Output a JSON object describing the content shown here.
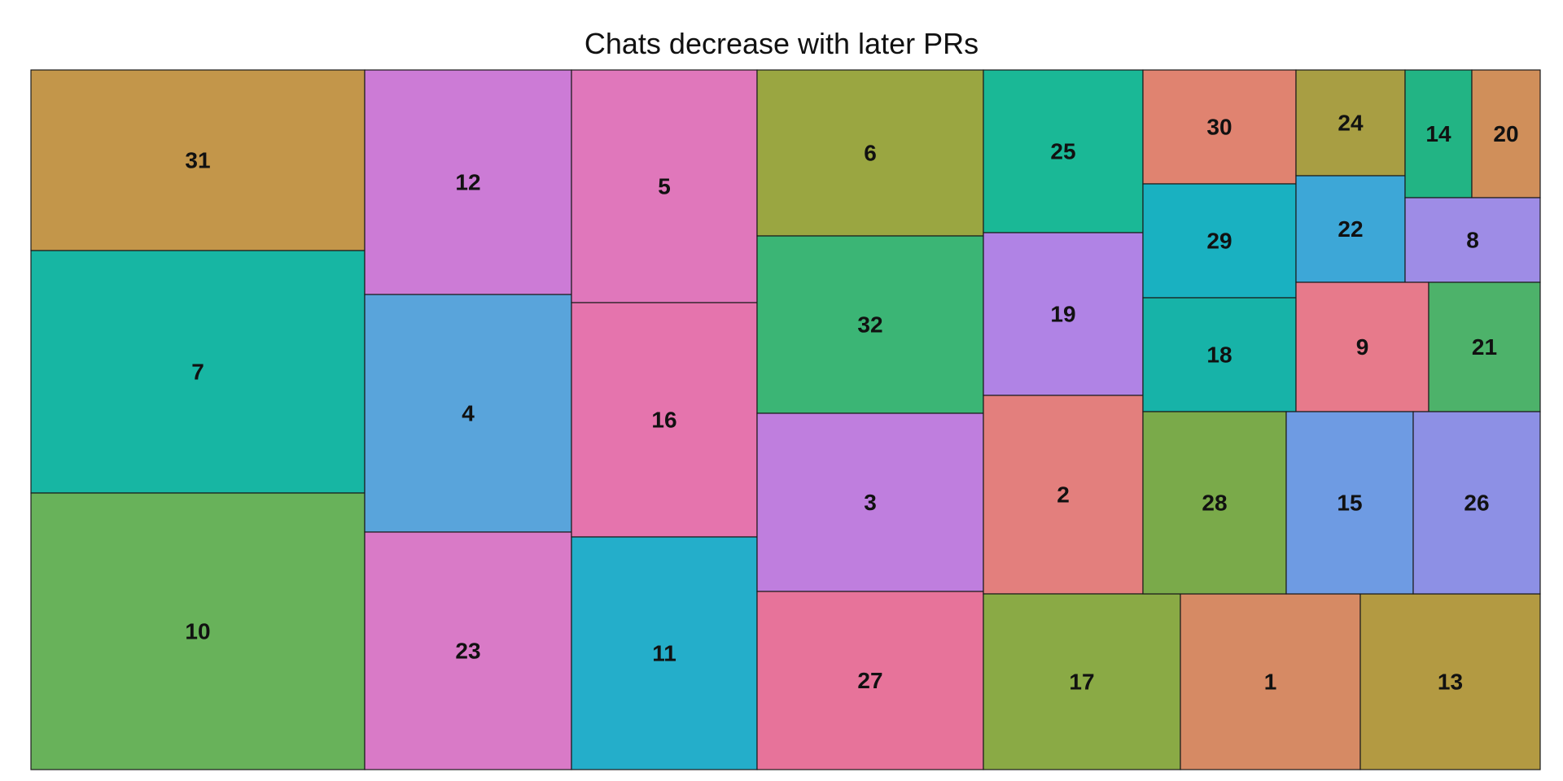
{
  "chart_data": {
    "type": "treemap",
    "title": "Chats decrease with later PRs",
    "items": [
      {
        "label": "31",
        "color": "#C3964A"
      },
      {
        "label": "7",
        "color": "#17B6A3"
      },
      {
        "label": "10",
        "color": "#68B25A"
      },
      {
        "label": "12",
        "color": "#CC7BD6"
      },
      {
        "label": "4",
        "color": "#59A4DB"
      },
      {
        "label": "23",
        "color": "#D97AC7"
      },
      {
        "label": "5",
        "color": "#E077BB"
      },
      {
        "label": "16",
        "color": "#E574AD"
      },
      {
        "label": "11",
        "color": "#24AECA"
      },
      {
        "label": "6",
        "color": "#9AA641"
      },
      {
        "label": "32",
        "color": "#3BB575"
      },
      {
        "label": "3",
        "color": "#BF7EDE"
      },
      {
        "label": "27",
        "color": "#E7739A"
      },
      {
        "label": "25",
        "color": "#1AB896"
      },
      {
        "label": "19",
        "color": "#B083E5"
      },
      {
        "label": "2",
        "color": "#E37F7D"
      },
      {
        "label": "17",
        "color": "#8AAA45"
      },
      {
        "label": "1",
        "color": "#D68A64"
      },
      {
        "label": "13",
        "color": "#B39A42"
      },
      {
        "label": "30",
        "color": "#E08370"
      },
      {
        "label": "29",
        "color": "#19B1C1"
      },
      {
        "label": "18",
        "color": "#17B3A8"
      },
      {
        "label": "28",
        "color": "#7AAA4A"
      },
      {
        "label": "24",
        "color": "#A89E43"
      },
      {
        "label": "22",
        "color": "#3DA7D7"
      },
      {
        "label": "14",
        "color": "#22B484"
      },
      {
        "label": "20",
        "color": "#D08F5A"
      },
      {
        "label": "8",
        "color": "#9E8CE6"
      },
      {
        "label": "9",
        "color": "#E77A8B"
      },
      {
        "label": "21",
        "color": "#4DB26A"
      },
      {
        "label": "15",
        "color": "#6E9BE3"
      },
      {
        "label": "26",
        "color": "#8D90E5"
      }
    ]
  }
}
